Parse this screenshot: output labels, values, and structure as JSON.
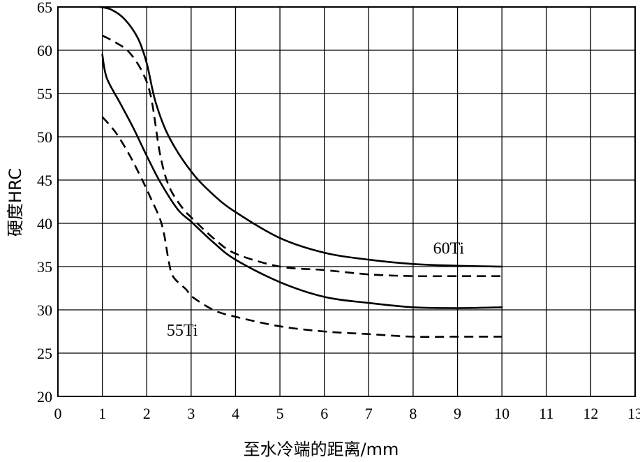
{
  "chart_data": {
    "type": "line",
    "xlabel": "至水冷端的距离/mm",
    "ylabel": "硬度HRC",
    "xlim": [
      0,
      13
    ],
    "ylim": [
      20,
      65
    ],
    "xticks": [
      0,
      1,
      2,
      3,
      4,
      5,
      6,
      7,
      8,
      9,
      10,
      11,
      12,
      13
    ],
    "yticks": [
      20,
      25,
      30,
      35,
      40,
      45,
      50,
      55,
      60,
      65
    ],
    "grid": true,
    "annotations": [
      {
        "text": "60Ti",
        "x": 8.8,
        "y": 36.5
      },
      {
        "text": "55Ti",
        "x": 2.8,
        "y": 27.0
      }
    ],
    "series": [
      {
        "style": "solid",
        "group": "60Ti",
        "x": [
          0.95,
          1.2,
          1.5,
          1.8,
          2.0,
          2.2,
          2.5,
          3.0,
          3.5,
          4.0,
          5.0,
          6.0,
          7.0,
          8.0,
          9.0,
          10.0
        ],
        "y": [
          65.0,
          64.7,
          63.6,
          61.4,
          58.5,
          54.0,
          50.0,
          46.0,
          43.3,
          41.3,
          38.3,
          36.6,
          35.8,
          35.3,
          35.1,
          35.0
        ]
      },
      {
        "style": "dashed",
        "group": "60Ti",
        "x": [
          1.0,
          1.3,
          1.6,
          1.9,
          2.1,
          2.3,
          2.5,
          2.8,
          3.0,
          3.5,
          4.0,
          5.0,
          6.0,
          7.0,
          8.0,
          9.0,
          10.0
        ],
        "y": [
          61.7,
          60.9,
          59.8,
          57.5,
          54.5,
          48.0,
          44.3,
          41.8,
          40.7,
          38.3,
          36.5,
          35.0,
          34.6,
          34.1,
          33.9,
          33.9,
          33.9
        ]
      },
      {
        "style": "solid",
        "group": "55Ti",
        "x": [
          1.0,
          1.1,
          1.4,
          1.7,
          2.0,
          2.3,
          2.7,
          3.0,
          3.5,
          4.0,
          5.0,
          6.0,
          7.0,
          8.0,
          9.0,
          10.0
        ],
        "y": [
          59.5,
          56.8,
          53.9,
          51.0,
          47.8,
          44.8,
          41.6,
          40.2,
          37.8,
          35.8,
          33.2,
          31.5,
          30.8,
          30.3,
          30.2,
          30.3
        ]
      },
      {
        "style": "dashed",
        "group": "55Ti",
        "x": [
          1.0,
          1.3,
          1.6,
          1.9,
          2.1,
          2.3,
          2.4,
          2.5,
          2.6,
          2.9,
          3.0,
          3.5,
          4.0,
          5.0,
          6.0,
          7.0,
          8.0,
          9.0,
          10.0
        ],
        "y": [
          52.3,
          50.5,
          48.0,
          45.0,
          42.8,
          40.5,
          38.5,
          35.5,
          33.8,
          32.3,
          31.6,
          30.0,
          29.2,
          28.1,
          27.5,
          27.2,
          26.9,
          26.9,
          26.9
        ]
      }
    ]
  }
}
